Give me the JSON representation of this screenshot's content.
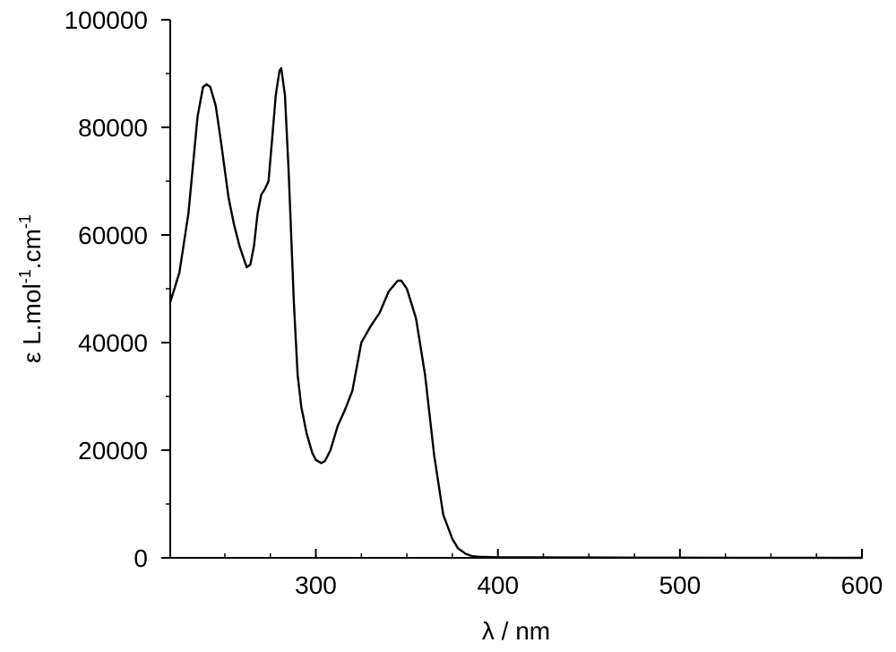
{
  "chart_data": {
    "type": "line",
    "title": "",
    "xlabel": "λ / nm",
    "ylabel": {
      "prefix": "ε L.mol",
      "exp1": "-1",
      "mid": ".cm",
      "exp2": "-1"
    },
    "xlim": [
      220,
      600
    ],
    "ylim": [
      0,
      100000
    ],
    "x_ticks": [
      300,
      400,
      500,
      600
    ],
    "x_tick_labels": [
      "300",
      "400",
      "500",
      "600"
    ],
    "x_minor_step": 25,
    "y_ticks": [
      0,
      20000,
      40000,
      60000,
      80000,
      100000
    ],
    "y_tick_labels": [
      "0",
      "20000",
      "40000",
      "60000",
      "80000",
      "100000"
    ],
    "y_minor_step": 10000,
    "grid": false,
    "legend": "none",
    "line_color": "#000000",
    "series": [
      {
        "x": [
          220,
          225,
          230,
          235,
          238,
          240,
          242,
          245,
          248,
          252,
          255,
          258,
          262,
          264,
          266,
          268,
          270,
          272,
          274,
          276,
          278,
          280,
          281,
          283,
          285,
          288,
          290,
          292,
          295,
          298,
          300,
          303,
          305,
          308,
          312,
          316,
          320,
          325,
          330,
          335,
          340,
          345,
          347,
          350,
          355,
          360,
          365,
          370,
          375,
          378,
          382,
          386,
          390,
          395,
          400,
          420,
          450,
          480,
          500,
          530,
          560,
          600
        ],
        "y": [
          47500,
          53000,
          64000,
          82000,
          87500,
          88000,
          87500,
          84000,
          77000,
          67000,
          62000,
          58000,
          54000,
          54500,
          58000,
          64000,
          67500,
          68500,
          70000,
          78000,
          86000,
          90500,
          91000,
          86000,
          72000,
          47000,
          34000,
          28000,
          23000,
          19500,
          18200,
          17600,
          18000,
          20000,
          24500,
          27500,
          31000,
          40000,
          43000,
          45500,
          49500,
          51500,
          51500,
          50000,
          44500,
          34000,
          19000,
          8000,
          3500,
          1800,
          800,
          300,
          200,
          150,
          100,
          80,
          60,
          40,
          30,
          20,
          10,
          0
        ]
      }
    ]
  }
}
